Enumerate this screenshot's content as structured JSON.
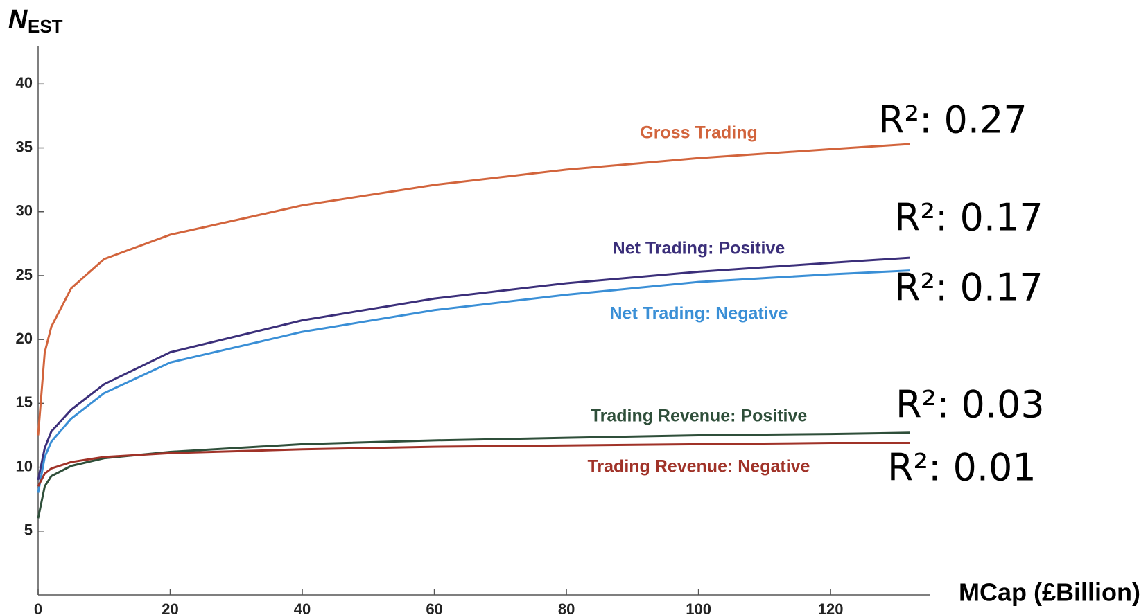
{
  "chart_data": {
    "type": "line",
    "ylabel": "N",
    "ylabel_sub": "EST",
    "xlabel": "MCap (£Billion)",
    "x": [
      0,
      1,
      2,
      5,
      10,
      20,
      40,
      60,
      80,
      100,
      120,
      132
    ],
    "xlim": [
      0,
      135
    ],
    "ylim": [
      0,
      43
    ],
    "xticks": [
      0,
      20,
      40,
      60,
      80,
      100,
      120
    ],
    "yticks": [
      5,
      10,
      15,
      20,
      25,
      30,
      35,
      40
    ],
    "series": [
      {
        "name": "Gross Trading",
        "color": "#d2643c",
        "values": [
          12.5,
          19,
          21,
          24,
          26.3,
          28.2,
          30.5,
          32.1,
          33.3,
          34.2,
          34.9,
          35.3
        ]
      },
      {
        "name": "Net Trading: Positive",
        "color": "#3b2f7a",
        "values": [
          9,
          11.5,
          12.8,
          14.5,
          16.5,
          19,
          21.5,
          23.2,
          24.4,
          25.3,
          26,
          26.4
        ]
      },
      {
        "name": "Net Trading: Negative",
        "color": "#3a8fd6",
        "values": [
          8,
          10.8,
          12,
          13.8,
          15.8,
          18.2,
          20.6,
          22.3,
          23.5,
          24.5,
          25.1,
          25.4
        ]
      },
      {
        "name": "Trading Revenue: Positive",
        "color": "#2f4f3a",
        "values": [
          6,
          8.5,
          9.3,
          10.1,
          10.7,
          11.2,
          11.8,
          12.1,
          12.3,
          12.5,
          12.6,
          12.7
        ]
      },
      {
        "name": "Trading Revenue: Negative",
        "color": "#a03228",
        "values": [
          8.5,
          9.5,
          9.9,
          10.4,
          10.8,
          11.1,
          11.4,
          11.6,
          11.7,
          11.8,
          11.9,
          11.9
        ]
      }
    ],
    "annotations": [
      "R²: 0.27",
      "R²: 0.17",
      "R²: 0.17",
      "R²: 0.03",
      "R²: 0.01"
    ]
  }
}
